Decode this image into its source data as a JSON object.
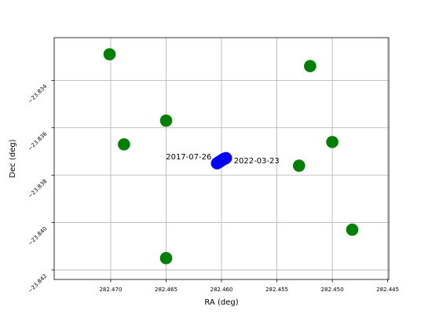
{
  "chart_data": {
    "type": "scatter",
    "title": "",
    "xlabel": "RA (deg)",
    "ylabel": "Dec (deg)",
    "xlim": [
      282.4751,
      282.4449
    ],
    "ylim": [
      -23.8424,
      -23.8322
    ],
    "x_inverted": true,
    "grid": true,
    "xticks": [
      282.47,
      282.465,
      282.46,
      282.455,
      282.45,
      282.445
    ],
    "xtick_labels": [
      "282.470",
      "282.465",
      "282.460",
      "282.455",
      "282.450",
      "282.445"
    ],
    "yticks": [
      -23.834,
      -23.836,
      -23.838,
      -23.84,
      -23.842
    ],
    "ytick_labels": [
      "−23.834",
      "−23.836",
      "−23.838",
      "−23.840",
      "−23.842"
    ],
    "series": [
      {
        "color": "#008000",
        "points": [
          {
            "x": 282.4701,
            "y": -23.8329
          },
          {
            "x": 282.452,
            "y": -23.8334
          },
          {
            "x": 282.465,
            "y": -23.8357
          },
          {
            "x": 282.4688,
            "y": -23.8367
          },
          {
            "x": 282.45,
            "y": -23.8366
          },
          {
            "x": 282.453,
            "y": -23.8376
          },
          {
            "x": 282.4482,
            "y": -23.8403
          },
          {
            "x": 282.465,
            "y": -23.8415
          }
        ]
      },
      {
        "color": "#0000ff",
        "points": [
          {
            "x": 282.4604,
            "y": -23.8375
          },
          {
            "x": 282.4603,
            "y": -23.83747
          },
          {
            "x": 282.4602,
            "y": -23.83744
          },
          {
            "x": 282.4601,
            "y": -23.83741
          },
          {
            "x": 282.46,
            "y": -23.83738
          },
          {
            "x": 282.4599,
            "y": -23.83735
          },
          {
            "x": 282.4598,
            "y": -23.83732
          },
          {
            "x": 282.4597,
            "y": -23.8373
          },
          {
            "x": 282.4596,
            "y": -23.83728
          }
        ]
      }
    ],
    "annotations": [
      {
        "text": "2017-07-26",
        "x": 282.4604,
        "y": -23.8375,
        "anchor": "end"
      },
      {
        "text": "2022-03-23",
        "x": 282.4596,
        "y": -23.8373,
        "anchor": "start"
      }
    ]
  }
}
